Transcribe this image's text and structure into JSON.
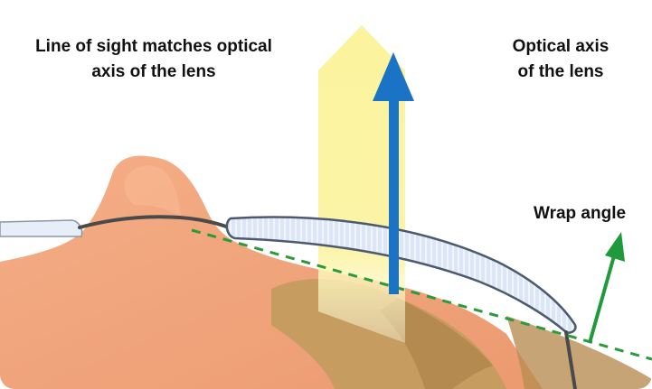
{
  "labels": {
    "line_of_sight": [
      "Line of sight matches optical",
      "axis of the lens"
    ],
    "optical_axis": [
      "Optical axis",
      "of the lens"
    ],
    "wrap_angle": "Wrap angle"
  },
  "colors": {
    "sight_beam": "#faf29a",
    "optical_axis_arrow": "#1a73c4",
    "wrap_angle_arrow": "#1e9a3a",
    "lens_fill": "#d6e3f5",
    "lens_stroke": "#4d5a6e",
    "skin": "#f0a17a",
    "hair": "#c39a5e",
    "frame": "#4a4a4a",
    "tangent_line": "#2a9a3a"
  }
}
